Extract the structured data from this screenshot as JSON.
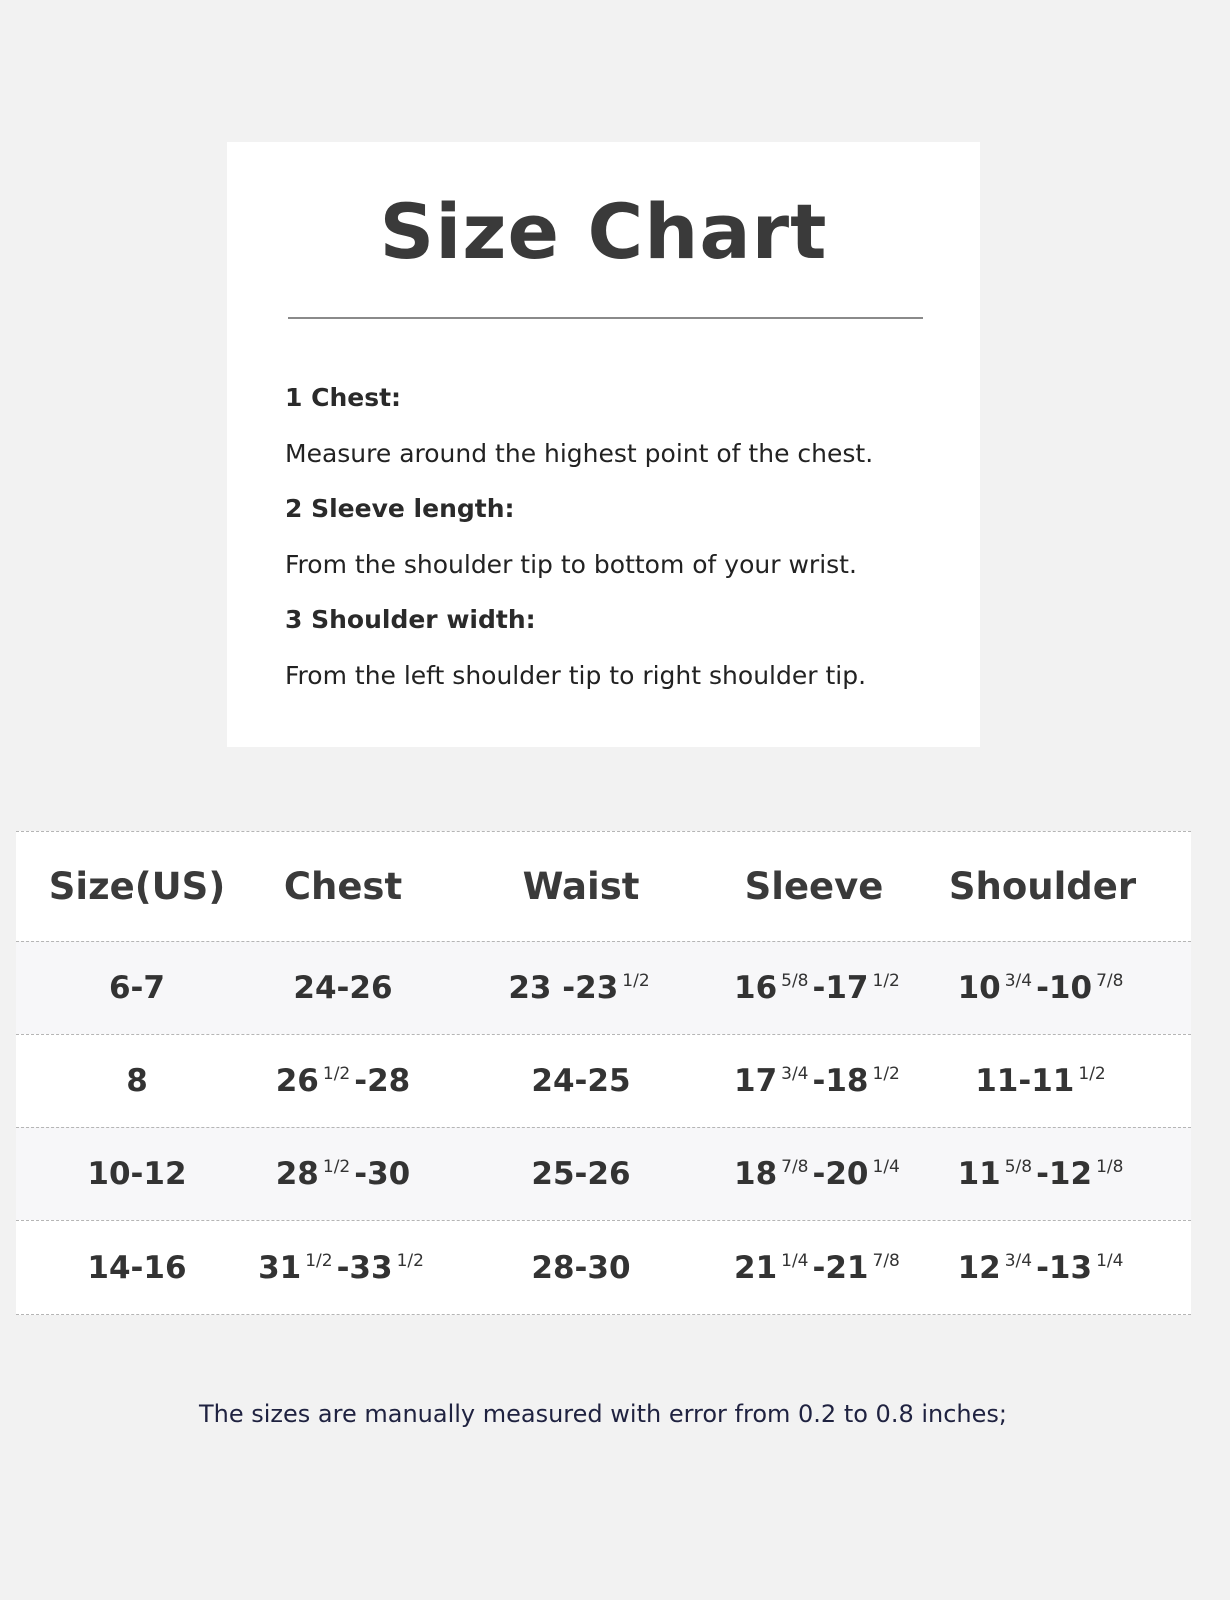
{
  "card": {
    "title": "Size Chart",
    "instructions": [
      {
        "heading": "1 Chest:",
        "text": "Measure around the highest point of the chest."
      },
      {
        "heading": "2 Sleeve length:",
        "text": "From the shoulder tip to bottom of your wrist."
      },
      {
        "heading": "3 Shoulder width:",
        "text": "From the left shoulder tip to right shoulder tip."
      }
    ]
  },
  "table": {
    "headers": [
      "Size(US)",
      "Chest",
      "Waist",
      "Sleeve",
      "Shoulder"
    ],
    "rows": [
      [
        [
          {
            "t": "6-7"
          }
        ],
        [
          {
            "t": "24-26"
          }
        ],
        [
          {
            "t": "23 -23"
          },
          {
            "s": "1/2"
          }
        ],
        [
          {
            "t": "16"
          },
          {
            "s": "5/8"
          },
          {
            "t": "-17"
          },
          {
            "s": "1/2"
          }
        ],
        [
          {
            "t": "10"
          },
          {
            "s": "3/4"
          },
          {
            "t": "-10"
          },
          {
            "s": "7/8"
          }
        ]
      ],
      [
        [
          {
            "t": "8"
          }
        ],
        [
          {
            "t": "26"
          },
          {
            "s": "1/2"
          },
          {
            "t": "-28"
          }
        ],
        [
          {
            "t": "24-25"
          }
        ],
        [
          {
            "t": "17"
          },
          {
            "s": "3/4"
          },
          {
            "t": "-18"
          },
          {
            "s": "1/2"
          }
        ],
        [
          {
            "t": "11-11"
          },
          {
            "s": "1/2"
          }
        ]
      ],
      [
        [
          {
            "t": "10-12"
          }
        ],
        [
          {
            "t": "28"
          },
          {
            "s": "1/2"
          },
          {
            "t": "-30"
          }
        ],
        [
          {
            "t": "25-26"
          }
        ],
        [
          {
            "t": "18"
          },
          {
            "s": "7/8"
          },
          {
            "t": "-20"
          },
          {
            "s": "1/4"
          }
        ],
        [
          {
            "t": "11"
          },
          {
            "s": "5/8"
          },
          {
            "t": "-12"
          },
          {
            "s": "1/8"
          }
        ]
      ],
      [
        [
          {
            "t": "14-16"
          }
        ],
        [
          {
            "t": "31"
          },
          {
            "s": "1/2"
          },
          {
            "t": "-33"
          },
          {
            "s": "1/2"
          }
        ],
        [
          {
            "t": "28-30"
          }
        ],
        [
          {
            "t": "21"
          },
          {
            "s": "1/4"
          },
          {
            "t": "-21"
          },
          {
            "s": "7/8"
          }
        ],
        [
          {
            "t": "12"
          },
          {
            "s": "3/4"
          },
          {
            "t": "-13"
          },
          {
            "s": "1/4"
          }
        ]
      ]
    ]
  },
  "footer": "The sizes are manually measured with error from 0.2 to 0.8 inches;"
}
